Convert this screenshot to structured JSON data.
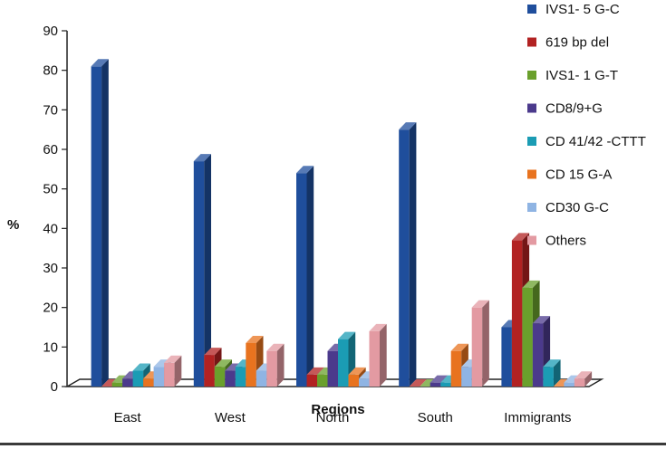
{
  "chart_data": {
    "type": "bar",
    "title": "",
    "xlabel": "Regions",
    "ylabel": "%",
    "ylim": [
      0,
      90
    ],
    "yticks": [
      0,
      10,
      20,
      30,
      40,
      50,
      60,
      70,
      80,
      90
    ],
    "categories": [
      "East",
      "West",
      "North",
      "South",
      "Immigrants"
    ],
    "legend_position": "top-right",
    "series": [
      {
        "name": "IVS1- 5 G-C",
        "color": "#1f4e9c",
        "values": [
          81,
          57,
          54,
          65,
          15
        ]
      },
      {
        "name": "619 bp del",
        "color": "#b22222",
        "values": [
          0,
          8,
          3,
          0,
          37
        ]
      },
      {
        "name": "IVS1- 1 G-T",
        "color": "#6aa02c",
        "values": [
          1,
          5,
          3,
          0,
          25
        ]
      },
      {
        "name": "CD8/9+G",
        "color": "#4b3a8c",
        "values": [
          2,
          4,
          9,
          1,
          16
        ]
      },
      {
        "name": "CD 41/42 -CTTT",
        "color": "#1b9cb4",
        "values": [
          4,
          5,
          12,
          1,
          5
        ]
      },
      {
        "name": "CD 15 G-A",
        "color": "#e8731f",
        "values": [
          2,
          11,
          3,
          9,
          0
        ]
      },
      {
        "name": "CD30 G-C",
        "color": "#8fb4e3",
        "values": [
          5,
          4,
          2,
          5,
          1
        ]
      },
      {
        "name": "Others",
        "color": "#e39aa2",
        "values": [
          6,
          9,
          14,
          20,
          2
        ]
      }
    ]
  }
}
